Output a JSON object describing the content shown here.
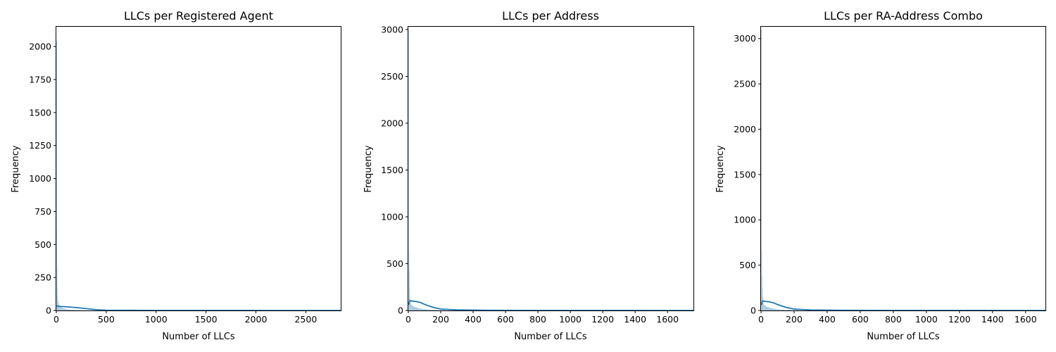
{
  "colors": {
    "bar_fill": "#a6c7df",
    "kde_line": "#1f77b4",
    "axes": "#000000",
    "background": "#ffffff"
  },
  "chart_data": [
    {
      "type": "histogram",
      "title": "LLCs per Registered Agent",
      "xlabel": "Number of LLCs",
      "ylabel": "Frequency",
      "xlim": [
        0,
        2850
      ],
      "ylim": [
        0,
        2150
      ],
      "xticks": [
        0,
        500,
        1000,
        1500,
        2000,
        2500
      ],
      "yticks": [
        0,
        250,
        500,
        750,
        1000,
        1250,
        1500,
        1750,
        2000
      ],
      "bars": {
        "x": [
          0,
          2,
          4,
          6,
          8,
          12,
          16,
          20,
          30,
          40,
          55,
          70,
          90,
          110,
          140,
          180,
          230,
          300,
          400
        ],
        "values": [
          2040,
          620,
          330,
          170,
          110,
          80,
          60,
          45,
          35,
          25,
          18,
          14,
          10,
          8,
          6,
          4,
          3,
          2,
          1
        ]
      },
      "kde": {
        "x": [
          0,
          10,
          50,
          100,
          200,
          300,
          400,
          500,
          1000,
          2000,
          2850
        ],
        "values": [
          35,
          32,
          30,
          28,
          22,
          14,
          6,
          2,
          0.5,
          0.2,
          0.1
        ]
      }
    },
    {
      "type": "histogram",
      "title": "LLCs per Address",
      "xlabel": "Number of LLCs",
      "ylabel": "Frequency",
      "xlim": [
        0,
        1760
      ],
      "ylim": [
        0,
        3030
      ],
      "xticks": [
        0,
        200,
        400,
        600,
        800,
        1000,
        1200,
        1400,
        1600
      ],
      "yticks": [
        0,
        500,
        1000,
        1500,
        2000,
        2500,
        3000
      ],
      "bars": {
        "x": [
          1,
          2,
          4,
          6,
          8,
          10,
          14,
          18,
          24,
          30,
          40,
          50,
          60,
          75,
          90,
          110,
          140,
          180,
          230
        ],
        "values": [
          3000,
          640,
          430,
          240,
          140,
          100,
          75,
          60,
          48,
          40,
          33,
          28,
          24,
          18,
          14,
          10,
          7,
          4,
          2
        ]
      },
      "kde": {
        "x": [
          0,
          10,
          25,
          50,
          75,
          100,
          150,
          200,
          300,
          500,
          1000,
          1760
        ],
        "values": [
          60,
          105,
          100,
          95,
          85,
          65,
          35,
          15,
          6,
          2,
          0.5,
          0.2
        ]
      }
    },
    {
      "type": "histogram",
      "title": "LLCs per RA-Address Combo",
      "xlabel": "Number of LLCs",
      "ylabel": "Frequency",
      "xlim": [
        0,
        1720
      ],
      "ylim": [
        0,
        3130
      ],
      "xticks": [
        0,
        200,
        400,
        600,
        800,
        1000,
        1200,
        1400,
        1600
      ],
      "yticks": [
        0,
        500,
        1000,
        1500,
        2000,
        2500,
        3000
      ],
      "bars": {
        "x": [
          1,
          2,
          4,
          6,
          8,
          10,
          14,
          18,
          24,
          30,
          40,
          50,
          60,
          75,
          90,
          110,
          140,
          180,
          230
        ],
        "values": [
          3100,
          660,
          380,
          240,
          140,
          100,
          75,
          60,
          48,
          40,
          33,
          28,
          24,
          18,
          14,
          10,
          7,
          4,
          2
        ]
      },
      "kde": {
        "x": [
          0,
          10,
          25,
          50,
          75,
          100,
          150,
          200,
          300,
          500,
          1000,
          1720
        ],
        "values": [
          60,
          105,
          100,
          95,
          85,
          65,
          35,
          15,
          6,
          2,
          0.5,
          0.2
        ]
      }
    }
  ]
}
